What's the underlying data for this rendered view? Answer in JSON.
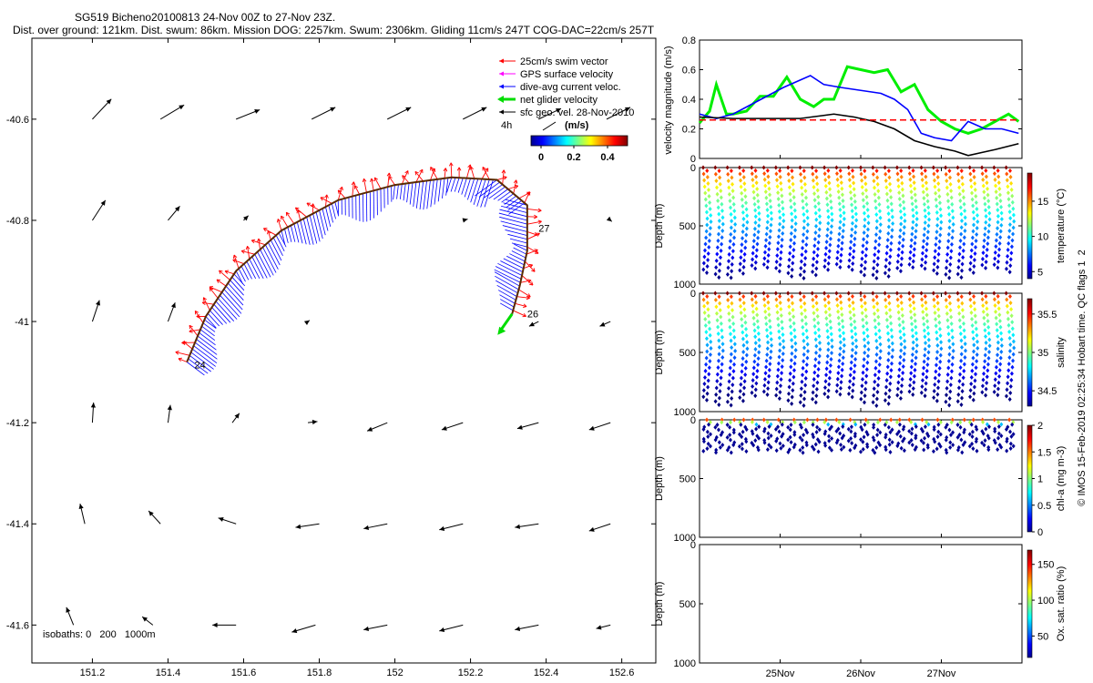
{
  "title": {
    "line1": "SG519 Bicheno20100813 24-Nov 00Z to 27-Nov 23Z.",
    "line2": "Dist. over ground: 121km. Dist. swum: 86km. Mission DOG: 2257km. Swum: 2306km. Gliding 11cm/s 247T COG-DAC=22cm/s 257T"
  },
  "legend": {
    "items": [
      {
        "label": "25cm/s swim vector",
        "color": "#ff0000"
      },
      {
        "label": "GPS surface velocity",
        "color": "#ff00ff"
      },
      {
        "label": "dive-avg current veloc.",
        "color": "#0000ff"
      },
      {
        "label": "net glider velocity",
        "color": "#00dd00"
      },
      {
        "label": "sfc geo. vel. 28-Nov-2010",
        "color": "#000000"
      }
    ],
    "scale_label": "4h",
    "colorbar_unit": "(m/s)",
    "colorbar_ticks": [
      "0",
      "0.2",
      "0.4"
    ]
  },
  "isobaths": "isobaths: 0   200   1000m",
  "side_credit": "© IMOS 15-Feb-2019 02:25:34 Hobart time. QC flags 1  2",
  "chart_data": [
    {
      "type": "map",
      "x_ticks": [
        "151.2",
        "151.4",
        "151.6",
        "151.8",
        "152",
        "152.2",
        "152.4",
        "152.6"
      ],
      "y_ticks": [
        "-40.6",
        "-40.8",
        "-41",
        "-41.2",
        "-41.4",
        "-41.6"
      ],
      "xlim": [
        151.04,
        152.69
      ],
      "ylim": [
        -41.675,
        -40.44
      ],
      "track_labels": [
        {
          "text": "24",
          "lon": 151.47,
          "lat": -41.085
        },
        {
          "text": "27",
          "lon": 152.38,
          "lat": -40.815
        },
        {
          "text": "26",
          "lon": 152.35,
          "lat": -40.985
        }
      ],
      "track": [
        [
          151.45,
          -41.08
        ],
        [
          151.5,
          -40.99
        ],
        [
          151.58,
          -40.9
        ],
        [
          151.7,
          -40.82
        ],
        [
          151.85,
          -40.76
        ],
        [
          152.0,
          -40.73
        ],
        [
          152.15,
          -40.715
        ],
        [
          152.27,
          -40.72
        ],
        [
          152.35,
          -40.77
        ],
        [
          152.35,
          -40.86
        ],
        [
          152.33,
          -40.93
        ],
        [
          152.31,
          -40.985
        ]
      ],
      "geo_vectors": [
        {
          "lon": 151.2,
          "lat": -40.6,
          "u": 0.8,
          "v": 0.85
        },
        {
          "lon": 151.38,
          "lat": -40.6,
          "u": 1.0,
          "v": 0.6
        },
        {
          "lon": 151.58,
          "lat": -40.6,
          "u": 1.0,
          "v": 0.4
        },
        {
          "lon": 151.78,
          "lat": -40.6,
          "u": 1.0,
          "v": 0.5
        },
        {
          "lon": 151.98,
          "lat": -40.6,
          "u": 1.0,
          "v": 0.5
        },
        {
          "lon": 152.18,
          "lat": -40.6,
          "u": 1.0,
          "v": 0.5
        },
        {
          "lon": 152.38,
          "lat": -40.6,
          "u": 0.95,
          "v": 0.45
        },
        {
          "lon": 152.56,
          "lat": -40.6,
          "u": 1.0,
          "v": 0.5
        },
        {
          "lon": 151.2,
          "lat": -40.8,
          "u": 0.55,
          "v": 0.85
        },
        {
          "lon": 151.4,
          "lat": -40.8,
          "u": 0.5,
          "v": 0.6
        },
        {
          "lon": 151.6,
          "lat": -40.8,
          "u": 0.2,
          "v": 0.2
        },
        {
          "lon": 152.18,
          "lat": -40.8,
          "u": 0.2,
          "v": 0.05
        },
        {
          "lon": 152.57,
          "lat": -40.8,
          "u": 0.06,
          "v": -0.05
        },
        {
          "lon": 151.2,
          "lat": -41.0,
          "u": 0.3,
          "v": 0.9
        },
        {
          "lon": 151.4,
          "lat": -41.0,
          "u": 0.3,
          "v": 0.8
        },
        {
          "lon": 151.77,
          "lat": -41.0,
          "u": 0.07,
          "v": 0.05
        },
        {
          "lon": 152.38,
          "lat": -41.0,
          "u": -0.4,
          "v": -0.2
        },
        {
          "lon": 152.57,
          "lat": -41.0,
          "u": -0.45,
          "v": -0.2
        },
        {
          "lon": 151.2,
          "lat": -41.2,
          "u": 0.05,
          "v": 0.85
        },
        {
          "lon": 151.4,
          "lat": -41.2,
          "u": 0.1,
          "v": 0.75
        },
        {
          "lon": 151.57,
          "lat": -41.2,
          "u": 0.3,
          "v": 0.4
        },
        {
          "lon": 151.77,
          "lat": -41.2,
          "u": 0.4,
          "v": 0.05
        },
        {
          "lon": 151.98,
          "lat": -41.2,
          "u": -0.85,
          "v": -0.35
        },
        {
          "lon": 152.18,
          "lat": -41.2,
          "u": -0.9,
          "v": -0.3
        },
        {
          "lon": 152.38,
          "lat": -41.2,
          "u": -0.9,
          "v": -0.25
        },
        {
          "lon": 152.57,
          "lat": -41.2,
          "u": -0.9,
          "v": -0.3
        },
        {
          "lon": 151.18,
          "lat": -41.4,
          "u": -0.2,
          "v": 0.85
        },
        {
          "lon": 151.38,
          "lat": -41.4,
          "u": -0.5,
          "v": 0.55
        },
        {
          "lon": 151.58,
          "lat": -41.4,
          "u": -0.75,
          "v": 0.25
        },
        {
          "lon": 151.8,
          "lat": -41.4,
          "u": -1.0,
          "v": -0.15
        },
        {
          "lon": 151.98,
          "lat": -41.4,
          "u": -1.0,
          "v": -0.2
        },
        {
          "lon": 152.18,
          "lat": -41.4,
          "u": -1.0,
          "v": -0.25
        },
        {
          "lon": 152.38,
          "lat": -41.4,
          "u": -1.0,
          "v": -0.15
        },
        {
          "lon": 152.57,
          "lat": -41.4,
          "u": -0.9,
          "v": -0.3
        },
        {
          "lon": 151.15,
          "lat": -41.6,
          "u": -0.3,
          "v": 0.75
        },
        {
          "lon": 151.36,
          "lat": -41.6,
          "u": -0.45,
          "v": 0.35
        },
        {
          "lon": 151.58,
          "lat": -41.6,
          "u": -1.0,
          "v": 0.0
        },
        {
          "lon": 151.79,
          "lat": -41.6,
          "u": -1.0,
          "v": -0.3
        },
        {
          "lon": 151.98,
          "lat": -41.6,
          "u": -1.0,
          "v": -0.2
        },
        {
          "lon": 152.18,
          "lat": -41.6,
          "u": -1.0,
          "v": -0.25
        },
        {
          "lon": 152.38,
          "lat": -41.6,
          "u": -1.0,
          "v": -0.2
        },
        {
          "lon": 152.57,
          "lat": -41.6,
          "u": -0.6,
          "v": -0.15
        }
      ]
    },
    {
      "type": "line",
      "ylabel": "velocity magnitude (m/s)",
      "ylim": [
        0,
        0.8
      ],
      "y_ticks": [
        "0",
        "0.2",
        "0.4",
        "0.6",
        "0.8"
      ],
      "series": [
        {
          "color": "#00ee00",
          "values": [
            [
              0,
              0.24
            ],
            [
              3,
              0.32
            ],
            [
              5,
              0.5
            ],
            [
              8,
              0.3
            ],
            [
              10,
              0.3
            ],
            [
              14,
              0.32
            ],
            [
              18,
              0.42
            ],
            [
              22,
              0.42
            ],
            [
              26,
              0.55
            ],
            [
              30,
              0.4
            ],
            [
              34,
              0.35
            ],
            [
              37,
              0.4
            ],
            [
              40,
              0.4
            ],
            [
              44,
              0.62
            ],
            [
              48,
              0.6
            ],
            [
              52,
              0.58
            ],
            [
              56,
              0.6
            ],
            [
              60,
              0.45
            ],
            [
              64,
              0.5
            ],
            [
              68,
              0.33
            ],
            [
              72,
              0.25
            ],
            [
              76,
              0.2
            ],
            [
              80,
              0.17
            ],
            [
              84,
              0.2
            ],
            [
              88,
              0.25
            ],
            [
              92,
              0.3
            ],
            [
              95,
              0.25
            ]
          ]
        },
        {
          "color": "#0000ff",
          "values": [
            [
              0,
              0.3
            ],
            [
              5,
              0.27
            ],
            [
              10,
              0.3
            ],
            [
              15,
              0.36
            ],
            [
              20,
              0.42
            ],
            [
              25,
              0.48
            ],
            [
              30,
              0.53
            ],
            [
              33,
              0.56
            ],
            [
              37,
              0.5
            ],
            [
              42,
              0.48
            ],
            [
              48,
              0.46
            ],
            [
              54,
              0.44
            ],
            [
              58,
              0.4
            ],
            [
              62,
              0.33
            ],
            [
              66,
              0.17
            ],
            [
              70,
              0.14
            ],
            [
              75,
              0.12
            ],
            [
              80,
              0.25
            ],
            [
              85,
              0.2
            ],
            [
              90,
              0.2
            ],
            [
              95,
              0.17
            ]
          ]
        },
        {
          "color": "#000000",
          "values": [
            [
              0,
              0.28
            ],
            [
              10,
              0.27
            ],
            [
              20,
              0.27
            ],
            [
              30,
              0.27
            ],
            [
              40,
              0.3
            ],
            [
              46,
              0.28
            ],
            [
              52,
              0.25
            ],
            [
              58,
              0.2
            ],
            [
              64,
              0.12
            ],
            [
              70,
              0.08
            ],
            [
              76,
              0.05
            ],
            [
              80,
              0.02
            ],
            [
              84,
              0.04
            ],
            [
              88,
              0.06
            ],
            [
              95,
              0.1
            ]
          ]
        },
        {
          "color": "#ff0000",
          "dashed": true,
          "values": [
            [
              0,
              0.26
            ],
            [
              95,
              0.26
            ]
          ]
        }
      ]
    },
    {
      "type": "scatter",
      "ylabel": "Depth (m)",
      "ylim": [
        1000,
        0
      ],
      "y_ticks": [
        "0",
        "500",
        "1000"
      ],
      "profile_max_depth": 950,
      "colorbar_label": "temperature (°C)",
      "colorbar_ticks": [
        "5",
        "10",
        "15"
      ],
      "range": [
        4,
        19
      ]
    },
    {
      "type": "scatter",
      "ylabel": "Depth (m)",
      "ylim": [
        1000,
        0
      ],
      "y_ticks": [
        "0",
        "500",
        "1000"
      ],
      "profile_max_depth": 950,
      "colorbar_label": "salinity",
      "colorbar_ticks": [
        "34.5",
        "35",
        "35.5"
      ],
      "range": [
        34.3,
        35.7
      ]
    },
    {
      "type": "scatter",
      "ylabel": "Depth (m)",
      "ylim": [
        1000,
        0
      ],
      "y_ticks": [
        "0",
        "500",
        "1000"
      ],
      "profile_max_depth": 280,
      "colorbar_label": "chl-a (mg m-3)",
      "colorbar_ticks": [
        "0",
        "0.5",
        "1",
        "1.5",
        "2"
      ],
      "range": [
        0,
        2
      ]
    },
    {
      "type": "scatter",
      "ylabel": "Depth (m)",
      "ylim": [
        1000,
        0
      ],
      "y_ticks": [
        "0",
        "500",
        "1000"
      ],
      "colorbar_label": "Ox. sat. ratio (%)",
      "colorbar_ticks": [
        "50",
        "100",
        "150"
      ],
      "range": [
        20,
        170
      ],
      "x_ticks": [
        "25Nov",
        "26Nov",
        "27Nov"
      ],
      "x_tick_hours": [
        24,
        48,
        72
      ],
      "x_range_hours": [
        0,
        96
      ]
    }
  ]
}
